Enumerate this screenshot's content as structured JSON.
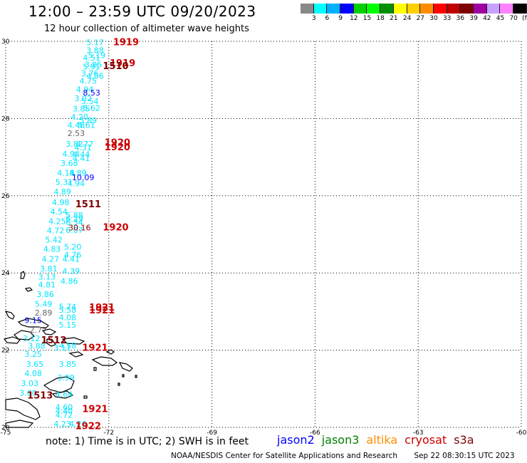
{
  "title": "12:00 – 23:59 UTC 09/20/2023",
  "subtitle": "12 hour collection of altimeter wave heights",
  "scale": {
    "colors": [
      "#888888",
      "#00ffff",
      "#00b0ff",
      "#0000ff",
      "#00d000",
      "#00ff00",
      "#009000",
      "#ffff00",
      "#ffd000",
      "#ff8c00",
      "#ff0000",
      "#c00000",
      "#800000",
      "#a000a0",
      "#c8a0ff",
      "#ff80ff",
      "#000000"
    ],
    "labels": [
      "3",
      "6",
      "9",
      "12",
      "15",
      "18",
      "21",
      "24",
      "27",
      "30",
      "33",
      "36",
      "39",
      "42",
      "45",
      "70",
      "(ft)"
    ]
  },
  "axes": {
    "lat_labels": [
      "30",
      "28",
      "26",
      "24",
      "22",
      "20"
    ],
    "lon_labels": [
      "-75",
      "-72",
      "-69",
      "-66",
      "-63",
      "-60"
    ]
  },
  "colors": {
    "jason2": "#0000ff",
    "jason3": "#008000",
    "altika": "#ff8c00",
    "cryosat": "#cc0000",
    "s3a": "#800000",
    "wave": "#00e5ff",
    "land": "#000000"
  },
  "wave_heights": [
    {
      "v": "5.17",
      "lon": -72.4,
      "lat": 29.9,
      "c": "wave"
    },
    {
      "v": "3.88",
      "lon": -72.4,
      "lat": 29.7,
      "c": "wave"
    },
    {
      "v": "5.19",
      "lon": -72.35,
      "lat": 29.57,
      "c": "wave"
    },
    {
      "v": "4.51",
      "lon": -72.5,
      "lat": 29.5,
      "c": "wave"
    },
    {
      "v": "3.85",
      "lon": -72.45,
      "lat": 29.33,
      "c": "wave"
    },
    {
      "v": "5.91",
      "lon": -72.5,
      "lat": 29.27,
      "c": "wave"
    },
    {
      "v": "3.76",
      "lon": -72.55,
      "lat": 29.1,
      "c": "wave"
    },
    {
      "v": "4.06",
      "lon": -72.4,
      "lat": 29.03,
      "c": "wave"
    },
    {
      "v": "4.75",
      "lon": -72.6,
      "lat": 28.9,
      "c": "wave"
    },
    {
      "v": "4.94",
      "lon": -72.7,
      "lat": 28.68,
      "c": "wave"
    },
    {
      "v": "3.02",
      "lon": -72.75,
      "lat": 28.45,
      "c": "wave"
    },
    {
      "v": "5.54",
      "lon": -72.55,
      "lat": 28.38,
      "c": "wave"
    },
    {
      "v": "3.85",
      "lon": -72.8,
      "lat": 28.18,
      "c": "wave"
    },
    {
      "v": "5.62",
      "lon": -72.5,
      "lat": 28.2,
      "c": "wave"
    },
    {
      "v": "4.20",
      "lon": -72.85,
      "lat": 27.97,
      "c": "wave"
    },
    {
      "v": "5.89",
      "lon": -72.6,
      "lat": 27.88,
      "c": "wave"
    },
    {
      "v": "4.48",
      "lon": -72.95,
      "lat": 27.76,
      "c": "wave"
    },
    {
      "v": "5.61",
      "lon": -72.65,
      "lat": 27.76,
      "c": "wave"
    },
    {
      "v": "3.82",
      "lon": -73.0,
      "lat": 27.27,
      "c": "wave"
    },
    {
      "v": "4.77",
      "lon": -72.7,
      "lat": 27.27,
      "c": "wave"
    },
    {
      "v": "4.31",
      "lon": -72.75,
      "lat": 27.18,
      "c": "wave"
    },
    {
      "v": "4.94",
      "lon": -73.1,
      "lat": 27.01,
      "c": "wave"
    },
    {
      "v": "4.44",
      "lon": -72.8,
      "lat": 27.0,
      "c": "wave"
    },
    {
      "v": "4.41",
      "lon": -72.8,
      "lat": 26.9,
      "c": "wave"
    },
    {
      "v": "3.68",
      "lon": -73.15,
      "lat": 26.77,
      "c": "wave"
    },
    {
      "v": "4.18",
      "lon": -73.25,
      "lat": 26.52,
      "c": "wave"
    },
    {
      "v": "4.89",
      "lon": -72.9,
      "lat": 26.52,
      "c": "wave"
    },
    {
      "v": "5.31",
      "lon": -73.3,
      "lat": 26.28,
      "c": "wave"
    },
    {
      "v": "4.94",
      "lon": -72.95,
      "lat": 26.25,
      "c": "wave"
    },
    {
      "v": "4.89",
      "lon": -73.35,
      "lat": 26.03,
      "c": "wave"
    },
    {
      "v": "4.98",
      "lon": -73.4,
      "lat": 25.76,
      "c": "wave"
    },
    {
      "v": "4.54",
      "lon": -73.45,
      "lat": 25.52,
      "c": "wave"
    },
    {
      "v": "5.88",
      "lon": -73.0,
      "lat": 25.42,
      "c": "wave"
    },
    {
      "v": "4.25",
      "lon": -73.5,
      "lat": 25.27,
      "c": "wave"
    },
    {
      "v": "6.29",
      "lon": -73.0,
      "lat": 25.33,
      "c": "wave"
    },
    {
      "v": "6.34",
      "lon": -73.0,
      "lat": 25.24,
      "c": "wave"
    },
    {
      "v": "4.72",
      "lon": -73.55,
      "lat": 25.03,
      "c": "wave"
    },
    {
      "v": "6.07",
      "lon": -73.0,
      "lat": 25.04,
      "c": "wave"
    },
    {
      "v": "5.42",
      "lon": -73.6,
      "lat": 24.79,
      "c": "wave"
    },
    {
      "v": "5.20",
      "lon": -73.05,
      "lat": 24.6,
      "c": "wave"
    },
    {
      "v": "4.83",
      "lon": -73.65,
      "lat": 24.55,
      "c": "wave"
    },
    {
      "v": "4.76",
      "lon": -73.05,
      "lat": 24.4,
      "c": "wave"
    },
    {
      "v": "4.27",
      "lon": -73.7,
      "lat": 24.29,
      "c": "wave"
    },
    {
      "v": "4.41",
      "lon": -73.1,
      "lat": 24.29,
      "c": "wave"
    },
    {
      "v": "3.81",
      "lon": -73.75,
      "lat": 24.04,
      "c": "wave"
    },
    {
      "v": "4.39",
      "lon": -73.1,
      "lat": 23.98,
      "c": "wave"
    },
    {
      "v": "3.13",
      "lon": -73.8,
      "lat": 23.83,
      "c": "wave"
    },
    {
      "v": "4.86",
      "lon": -73.15,
      "lat": 23.72,
      "c": "wave"
    },
    {
      "v": "4.81",
      "lon": -73.8,
      "lat": 23.63,
      "c": "wave"
    },
    {
      "v": "3.86",
      "lon": -73.85,
      "lat": 23.38,
      "c": "wave"
    },
    {
      "v": "5.49",
      "lon": -73.9,
      "lat": 23.13,
      "c": "wave"
    },
    {
      "v": "5.74",
      "lon": -73.2,
      "lat": 23.05,
      "c": "wave"
    },
    {
      "v": "5.58",
      "lon": -73.2,
      "lat": 22.97,
      "c": "wave"
    },
    {
      "v": "4.08",
      "lon": -73.2,
      "lat": 22.78,
      "c": "wave"
    },
    {
      "v": "5.15",
      "lon": -73.2,
      "lat": 22.58,
      "c": "wave"
    },
    {
      "v": "3.12",
      "lon": -74.25,
      "lat": 22.23,
      "c": "wave"
    },
    {
      "v": "4.58",
      "lon": -73.2,
      "lat": 22.05,
      "c": "wave"
    },
    {
      "v": "3.11",
      "lon": -73.35,
      "lat": 21.99,
      "c": "wave"
    },
    {
      "v": "3.88",
      "lon": -74.1,
      "lat": 22.04,
      "c": "wave"
    },
    {
      "v": "3.25",
      "lon": -74.2,
      "lat": 21.83,
      "c": "wave"
    },
    {
      "v": "3.65",
      "lon": -74.15,
      "lat": 21.57,
      "c": "wave"
    },
    {
      "v": "3.85",
      "lon": -73.2,
      "lat": 21.57,
      "c": "wave"
    },
    {
      "v": "4.08",
      "lon": -74.2,
      "lat": 21.33,
      "c": "wave"
    },
    {
      "v": "3.99",
      "lon": -73.25,
      "lat": 21.22,
      "c": "wave"
    },
    {
      "v": "3.03",
      "lon": -74.3,
      "lat": 21.07,
      "c": "wave"
    },
    {
      "v": "3.60",
      "lon": -74.35,
      "lat": 20.82,
      "c": "wave"
    },
    {
      "v": "4.64",
      "lon": -73.3,
      "lat": 20.78,
      "c": "wave"
    },
    {
      "v": "4.60",
      "lon": -73.3,
      "lat": 20.45,
      "c": "wave"
    },
    {
      "v": "4.40",
      "lon": -73.3,
      "lat": 20.36,
      "c": "wave"
    },
    {
      "v": "4.72",
      "lon": -73.3,
      "lat": 20.25,
      "c": "wave"
    },
    {
      "v": "4.23",
      "lon": -73.35,
      "lat": 20.02,
      "c": "wave"
    },
    {
      "v": "4.26",
      "lon": -72.9,
      "lat": 20.02,
      "c": "wave"
    },
    {
      "v": "8.53",
      "lon": -72.5,
      "lat": 28.6,
      "c": "jason2"
    },
    {
      "v": "10.09",
      "lon": -72.75,
      "lat": 26.4,
      "c": "jason2"
    },
    {
      "v": "9.15",
      "lon": -74.2,
      "lat": 22.7,
      "c": "jason2"
    },
    {
      "v": "2.53",
      "lon": -72.95,
      "lat": 27.55,
      "c": "gray"
    },
    {
      "v": "2.89",
      "lon": -73.9,
      "lat": 22.9,
      "c": "gray"
    },
    {
      "v": "2.77",
      "lon": -74.05,
      "lat": 22.45,
      "c": "gray"
    },
    {
      "v": "30.16",
      "lon": -72.85,
      "lat": 25.1,
      "c": "s3a"
    }
  ],
  "orbit_labels": [
    {
      "t": "1919",
      "lon": -71.5,
      "lat": 29.9,
      "c": "cryosat"
    },
    {
      "t": "1919",
      "lon": -71.6,
      "lat": 29.35,
      "c": "cryosat"
    },
    {
      "t": "1510",
      "lon": -71.8,
      "lat": 29.28,
      "c": "s3a"
    },
    {
      "t": "1920",
      "lon": -71.75,
      "lat": 27.3,
      "c": "cryosat"
    },
    {
      "t": "1920",
      "lon": -71.75,
      "lat": 27.18,
      "c": "cryosat"
    },
    {
      "t": "1511",
      "lon": -72.6,
      "lat": 25.7,
      "c": "s3a"
    },
    {
      "t": "1920",
      "lon": -71.8,
      "lat": 25.1,
      "c": "cryosat"
    },
    {
      "t": "1921",
      "lon": -72.2,
      "lat": 23.03,
      "c": "cryosat"
    },
    {
      "t": "1921",
      "lon": -72.2,
      "lat": 22.95,
      "c": "cryosat"
    },
    {
      "t": "1512",
      "lon": -73.6,
      "lat": 22.18,
      "c": "s3a"
    },
    {
      "t": "1921",
      "lon": -72.4,
      "lat": 21.98,
      "c": "cryosat"
    },
    {
      "t": "1513",
      "lon": -74.0,
      "lat": 20.75,
      "c": "s3a"
    },
    {
      "t": "1921",
      "lon": -72.4,
      "lat": 20.4,
      "c": "cryosat"
    },
    {
      "t": "1922",
      "lon": -72.6,
      "lat": 19.95,
      "c": "cryosat"
    }
  ],
  "note": "note: 1) Time is in UTC; 2) SWH is in feet",
  "legend": [
    {
      "name": "jason2",
      "c": "jason2"
    },
    {
      "name": "jason3",
      "c": "jason3"
    },
    {
      "name": "altika",
      "c": "altika"
    },
    {
      "name": "cryosat",
      "c": "cryosat"
    },
    {
      "name": "s3a",
      "c": "s3a"
    }
  ],
  "footer": {
    "credit": "NOAA/NESDIS Center for Satellite Applications and Research",
    "timestamp": "Sep 22 08:30:15 UTC 2023"
  }
}
